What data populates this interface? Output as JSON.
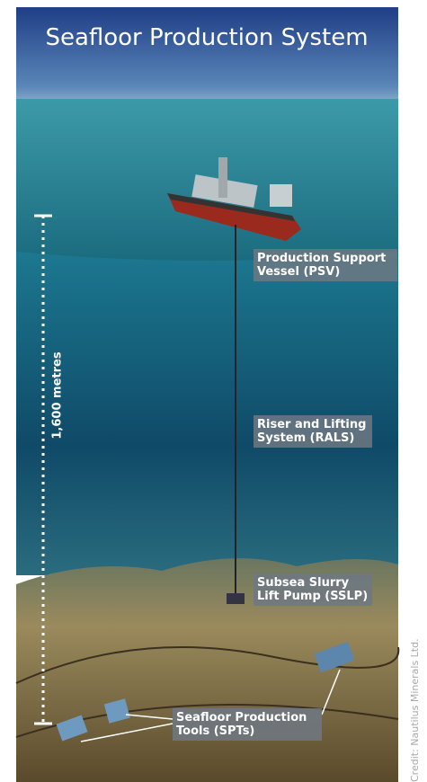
{
  "title": "Seafloor Production System",
  "scale_label": "1,600 metres",
  "labels": [
    {
      "lines": [
        "Production Support",
        "Vessel (PSV)"
      ]
    },
    {
      "lines": [
        "Riser and Lifting",
        "System (RALS)"
      ]
    },
    {
      "lines": [
        "Subsea Slurry",
        "Lift Pump (SSLP)"
      ]
    },
    {
      "lines": [
        "Seafloor Production",
        "Tools (SPTs)"
      ]
    }
  ],
  "credit": "Credit: Nautilus Minerals Ltd."
}
